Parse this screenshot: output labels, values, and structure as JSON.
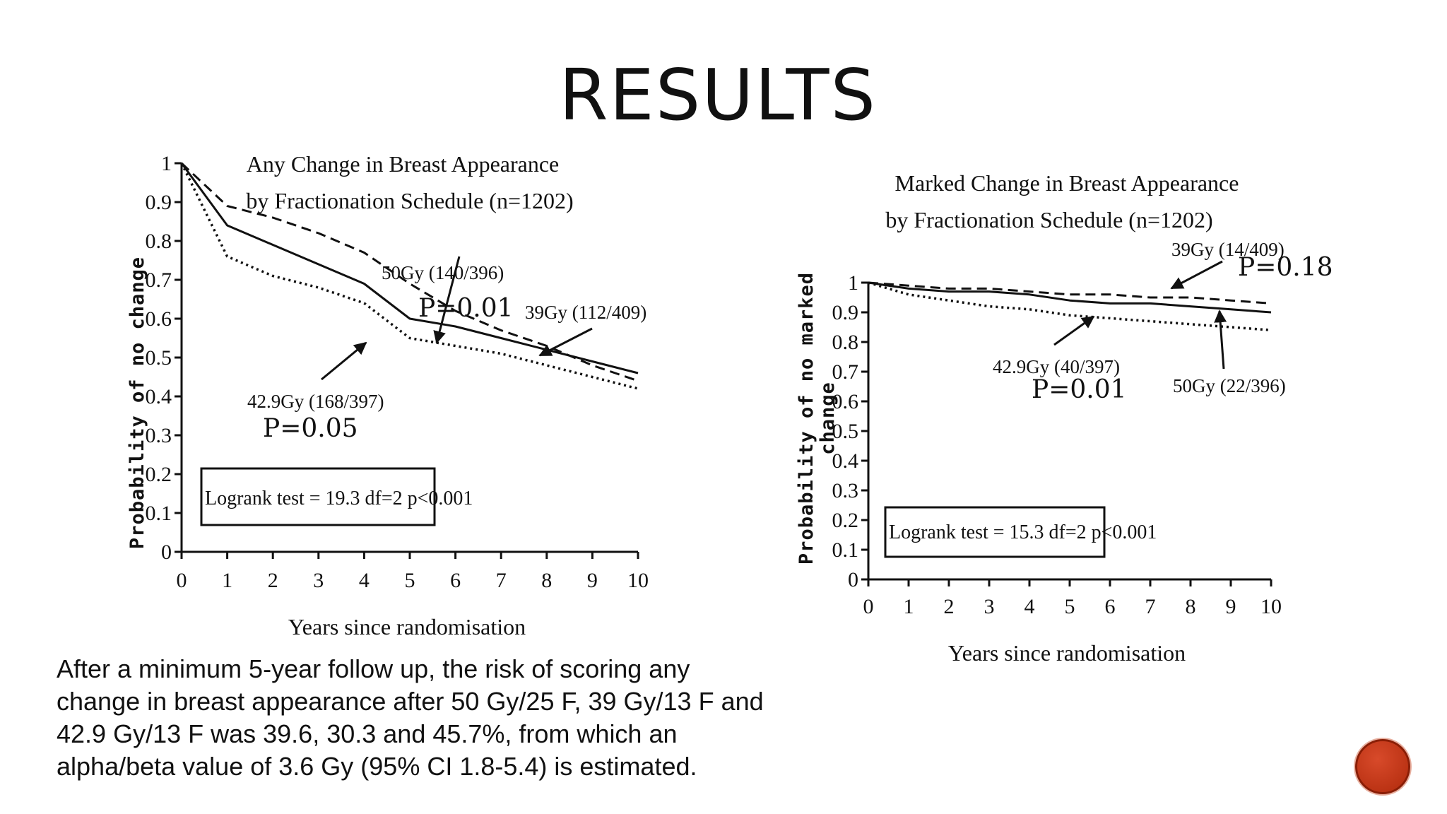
{
  "slide": {
    "title": "RESULTS",
    "summary": "After a minimum 5-year follow up, the risk of scoring any change in breast appearance after 50 Gy/25 F, 39 Gy/13 F and 42.9 Gy/13 F was 39.6, 30.3 and 45.7%, from which an alpha/beta value of 3.6 Gy (95% CI 1.8-5.4) is estimated."
  },
  "colors": {
    "text": "#111111",
    "nav_button": "#c0391b"
  },
  "chart_data": [
    {
      "type": "line",
      "title_lines": [
        "Any Change in Breast Appearance",
        "by Fractionation Schedule (n=1202)"
      ],
      "xlabel": "Years since randomisation",
      "ylabel": "Probability of no change",
      "xlim": [
        0,
        10
      ],
      "ylim": [
        0,
        1
      ],
      "x_ticks": [
        0,
        1,
        2,
        3,
        4,
        5,
        6,
        7,
        8,
        9,
        10
      ],
      "y_ticks": [
        0,
        0.1,
        0.2,
        0.3,
        0.4,
        0.5,
        0.6,
        0.7,
        0.8,
        0.9,
        1
      ],
      "x_tick_labels": [
        "0",
        "1",
        "2",
        "3",
        "4",
        "5",
        "6",
        "7",
        "8",
        "9",
        "10"
      ],
      "y_tick_labels": [
        "0",
        "0.1",
        "0.2",
        "0.3",
        "0.4",
        "0.5",
        "0.6",
        "0.7",
        "0.8",
        "0.9",
        "1"
      ],
      "grid": false,
      "series": [
        {
          "name": "50Gy (140/396)",
          "style": "solid",
          "x": [
            0,
            1,
            2,
            3,
            4,
            5,
            6,
            7,
            8,
            9,
            10
          ],
          "y": [
            1,
            0.84,
            0.79,
            0.74,
            0.69,
            0.6,
            0.58,
            0.55,
            0.52,
            0.49,
            0.46
          ]
        },
        {
          "name": "39Gy (112/409)",
          "style": "dashed",
          "x": [
            0,
            1,
            2,
            3,
            4,
            5,
            6,
            7,
            8,
            9,
            10
          ],
          "y": [
            1,
            0.89,
            0.86,
            0.82,
            0.77,
            0.69,
            0.62,
            0.57,
            0.53,
            0.48,
            0.44
          ]
        },
        {
          "name": "42.9Gy (168/397)",
          "style": "dotted",
          "x": [
            0,
            1,
            2,
            3,
            4,
            5,
            6,
            7,
            8,
            9,
            10
          ],
          "y": [
            1,
            0.76,
            0.71,
            0.68,
            0.64,
            0.55,
            0.53,
            0.51,
            0.48,
            0.45,
            0.42
          ]
        }
      ],
      "annotations": [
        {
          "label": "50Gy (140/396)",
          "pvalue": "P=0.01"
        },
        {
          "label": "39Gy (112/409)"
        },
        {
          "label": "42.9Gy (168/397)",
          "pvalue": "P=0.05"
        }
      ],
      "stat_box": "Logrank test = 19.3 df=2 p<0.001"
    },
    {
      "type": "line",
      "title_lines": [
        "Marked Change in Breast Appearance",
        "by Fractionation Schedule (n=1202)"
      ],
      "xlabel": "Years since randomisation",
      "ylabel_lines": [
        "Probability of no marked",
        "change"
      ],
      "xlim": [
        0,
        10
      ],
      "ylim": [
        0,
        1
      ],
      "x_ticks": [
        0,
        1,
        2,
        3,
        4,
        5,
        6,
        7,
        8,
        9,
        10
      ],
      "y_ticks": [
        0,
        0.1,
        0.2,
        0.3,
        0.4,
        0.5,
        0.6,
        0.7,
        0.8,
        0.9,
        1
      ],
      "x_tick_labels": [
        "0",
        "1",
        "2",
        "3",
        "4",
        "5",
        "6",
        "7",
        "8",
        "9",
        "10"
      ],
      "y_tick_labels": [
        "0",
        "0.1",
        "0.2",
        "0.3",
        "0.4",
        "0.5",
        "0.6",
        "0.7",
        "0.8",
        "0.9",
        "1"
      ],
      "grid": false,
      "series": [
        {
          "name": "50Gy (22/396)",
          "style": "solid",
          "x": [
            0,
            1,
            2,
            3,
            4,
            5,
            6,
            7,
            8,
            9,
            10
          ],
          "y": [
            1,
            0.98,
            0.97,
            0.97,
            0.96,
            0.94,
            0.93,
            0.93,
            0.92,
            0.91,
            0.9
          ]
        },
        {
          "name": "39Gy (14/409)",
          "style": "dashed",
          "x": [
            0,
            1,
            2,
            3,
            4,
            5,
            6,
            7,
            8,
            9,
            10
          ],
          "y": [
            1,
            0.99,
            0.98,
            0.98,
            0.97,
            0.96,
            0.96,
            0.95,
            0.95,
            0.94,
            0.93
          ]
        },
        {
          "name": "42.9Gy (40/397)",
          "style": "dotted",
          "x": [
            0,
            1,
            2,
            3,
            4,
            5,
            6,
            7,
            8,
            9,
            10
          ],
          "y": [
            1,
            0.96,
            0.94,
            0.92,
            0.91,
            0.89,
            0.88,
            0.87,
            0.86,
            0.85,
            0.84
          ]
        }
      ],
      "annotations": [
        {
          "label": "39Gy (14/409)",
          "pvalue": "P=0.18"
        },
        {
          "label": "42.9Gy (40/397)",
          "pvalue": "P=0.01"
        },
        {
          "label": "50Gy (22/396)"
        }
      ],
      "stat_box": "Logrank test = 15.3 df=2 p<0.001"
    }
  ]
}
